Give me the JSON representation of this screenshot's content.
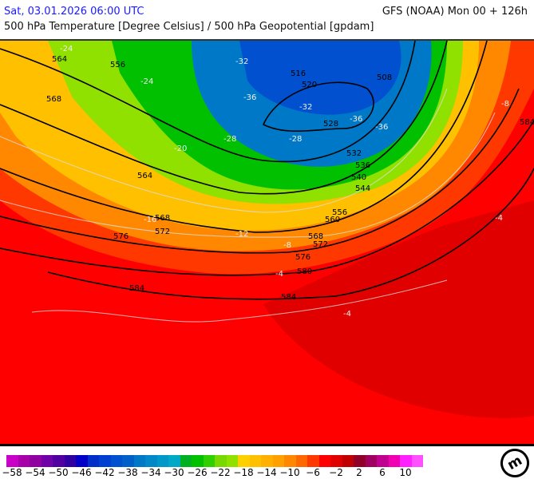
{
  "header": {
    "valid_time": "Sat, 03.01.2026 06:00 UTC",
    "model": "GFS (NOAA) Mon 00 + 126h",
    "parameter": "500 hPa Temperature [Degree Celsius] / 500 hPa Geopotential [gpdam]"
  },
  "legend": {
    "colors": [
      "#c800c8",
      "#a800a8",
      "#9000a0",
      "#7000a8",
      "#5000a0",
      "#3000a0",
      "#0000c8",
      "#0030c8",
      "#0040d0",
      "#0050d0",
      "#0060c8",
      "#0078c8",
      "#0088c8",
      "#0098c8",
      "#00a8c8",
      "#00b020",
      "#00c000",
      "#30d000",
      "#78d800",
      "#90e000",
      "#ffd000",
      "#ffc000",
      "#ffb000",
      "#ffa000",
      "#ff8800",
      "#ff6800",
      "#ff3800",
      "#ff0000",
      "#e00000",
      "#c00000",
      "#900028",
      "#a00060",
      "#c00090",
      "#f000b0",
      "#ff20ff",
      "#ff50ff"
    ],
    "labels": [
      "−58",
      "−54",
      "−50",
      "−46",
      "−42",
      "−38",
      "−34",
      "−30",
      "−26",
      "−22",
      "−18",
      "−14",
      "−10",
      "−6",
      "−2",
      "2",
      "6",
      "10"
    ]
  },
  "geopotential_labels": [
    "564",
    "556",
    "568",
    "516",
    "520",
    "508",
    "528",
    "532",
    "536",
    "540",
    "544",
    "564",
    "556",
    "560",
    "568",
    "572",
    "576",
    "580",
    "584",
    "584",
    "584",
    "576",
    "568",
    "572"
  ],
  "temperature_labels": [
    "-24",
    "-24",
    "-32",
    "-36",
    "-32",
    "-36",
    "-36",
    "-28",
    "-28",
    "-20",
    "-16",
    "-12",
    "-8",
    "-4",
    "-4",
    "-4",
    "-8"
  ]
}
